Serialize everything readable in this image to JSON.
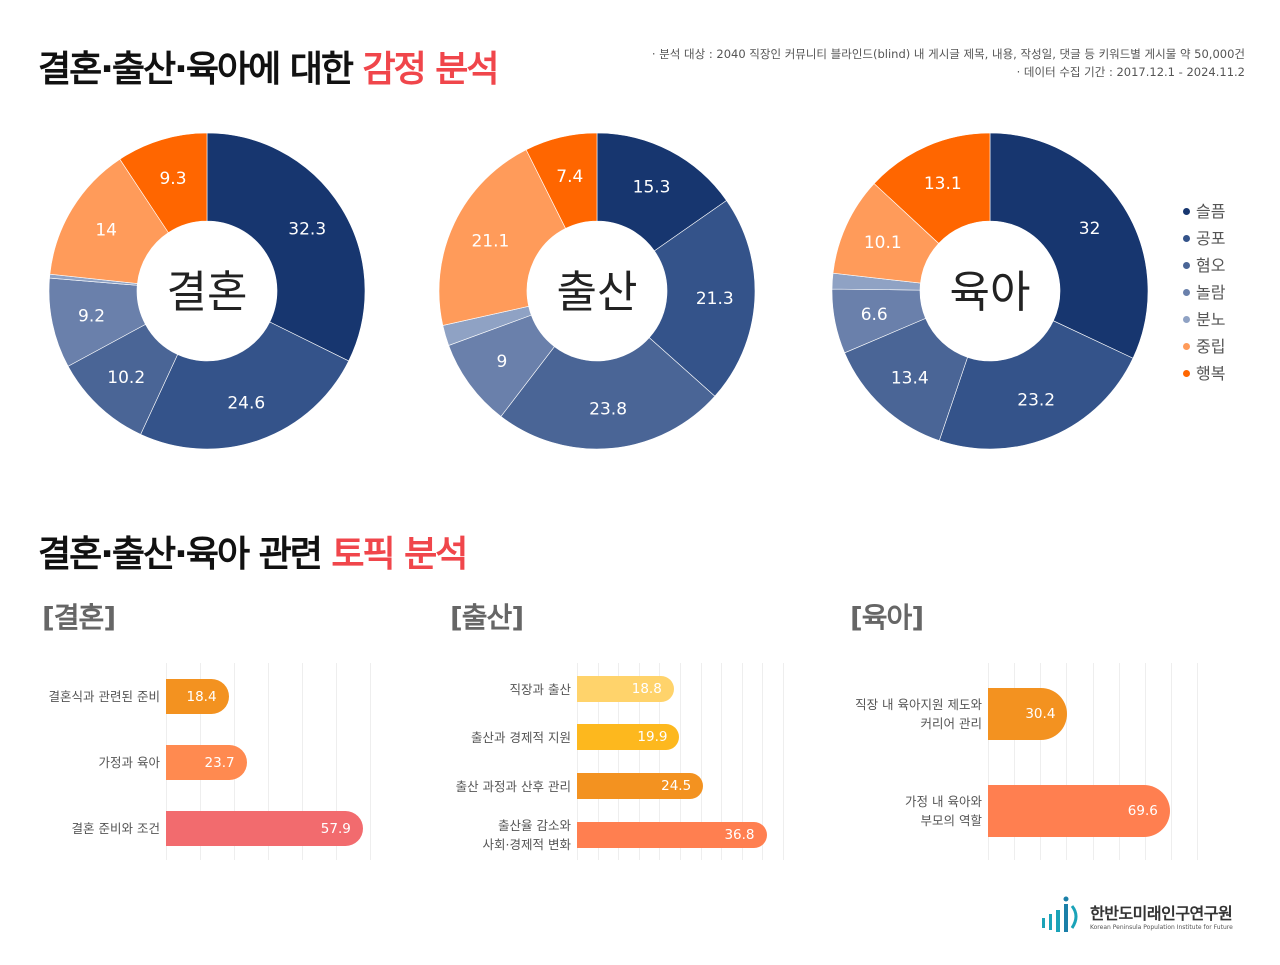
{
  "header": {
    "title_main": "결혼·출산·육아에 대한 ",
    "title_highlight": "감정 분석",
    "meta_line1": "· 분석 대상 : 2040 직장인 커뮤니티 블라인드(blind) 내 게시글 제목, 내용, 작성일, 댓글 등 키워드별 게시물 약 50,000건",
    "meta_line2": "· 데이터 수집 기간 : 2017.12.1 - 2024.11.2"
  },
  "topic_header": {
    "title_main": "결혼·출산·육아 관련 ",
    "title_highlight": "토픽 분석"
  },
  "legend": [
    {
      "label": "슬픔",
      "color": "#17366f"
    },
    {
      "label": "공포",
      "color": "#34538a"
    },
    {
      "label": "혐오",
      "color": "#4a6596"
    },
    {
      "label": "놀람",
      "color": "#6a80ab"
    },
    {
      "label": "분노",
      "color": "#8fa2c4"
    },
    {
      "label": "중립",
      "color": "#ff9b5a"
    },
    {
      "label": "행복",
      "color": "#ff6600"
    }
  ],
  "chart_data": [
    {
      "type": "pie",
      "center_label": "결혼",
      "categories": [
        "슬픔",
        "공포",
        "혐오",
        "놀람",
        "분노",
        "중립",
        "행복"
      ],
      "values": [
        32.3,
        24.6,
        10.2,
        9.2,
        0.4,
        14,
        9.3
      ],
      "labels": [
        "32.3",
        "24.6",
        "10.2",
        "9.2",
        "",
        "14",
        "9.3"
      ]
    },
    {
      "type": "pie",
      "center_label": "출산",
      "categories": [
        "슬픔",
        "공포",
        "혐오",
        "놀람",
        "분노",
        "중립",
        "행복"
      ],
      "values": [
        15.3,
        21.3,
        23.8,
        9,
        2.1,
        21.1,
        7.4
      ],
      "labels": [
        "15.3",
        "21.3",
        "23.8",
        "9",
        "",
        "21.1",
        "7.4"
      ]
    },
    {
      "type": "pie",
      "center_label": "육아",
      "categories": [
        "슬픔",
        "공포",
        "혐오",
        "놀람",
        "분노",
        "중립",
        "행복"
      ],
      "values": [
        32,
        23.2,
        13.4,
        6.6,
        1.6,
        10.1,
        13.1
      ],
      "labels": [
        "32",
        "23.2",
        "13.4",
        "6.6",
        "",
        "10.1",
        "13.1"
      ]
    },
    {
      "type": "bar",
      "title": "[결혼]",
      "orientation": "horizontal",
      "categories": [
        "결혼식과 관련된 준비",
        "가정과 육아",
        "결혼 준비와 조건"
      ],
      "values": [
        18.4,
        23.7,
        57.9
      ],
      "colors": [
        "#f39220",
        "#ff8a50",
        "#f26b6e"
      ],
      "xlim": [
        0,
        60
      ],
      "grid": true
    },
    {
      "type": "bar",
      "title": "[출산]",
      "orientation": "horizontal",
      "categories": [
        "직장과 출산",
        "출산과 경제적 지원",
        "출산 과정과 산후 관리",
        "출산율 감소와\n사회·경제적 변화"
      ],
      "values": [
        18.8,
        19.9,
        24.5,
        36.8
      ],
      "colors": [
        "#ffd36b",
        "#fdb81e",
        "#f39220",
        "#ff7f50"
      ],
      "xlim": [
        0,
        40
      ],
      "grid": true
    },
    {
      "type": "bar",
      "title": "[육아]",
      "orientation": "horizontal",
      "categories": [
        "직장 내 육아지원 제도와\n커리어 관리",
        "가정 내 육아와\n부모의 역할"
      ],
      "values": [
        30.4,
        69.6
      ],
      "colors": [
        "#f39220",
        "#ff7f50"
      ],
      "xlim": [
        0,
        80
      ],
      "grid": true
    }
  ],
  "logo": {
    "name_kr": "한반도미래인구연구원",
    "name_en": "Korean Peninsula Population Institute for Future"
  }
}
